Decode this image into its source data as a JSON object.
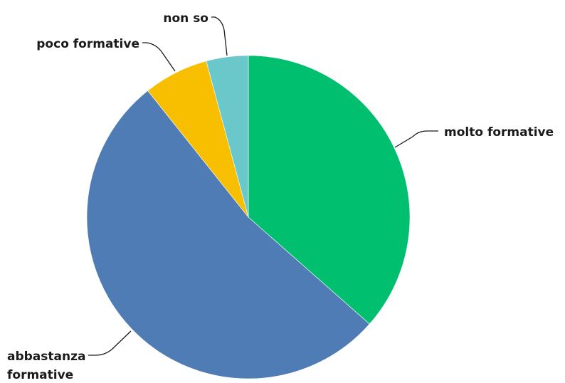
{
  "chart_data": {
    "type": "pie",
    "title": "",
    "slices": [
      {
        "name": "molto formative",
        "value": 36.5,
        "color": "#00c070"
      },
      {
        "name": "abbastanza formative",
        "value": 52.8,
        "color": "#4f7cb4"
      },
      {
        "name": "poco formative",
        "value": 6.5,
        "color": "#f8be00"
      },
      {
        "name": "non so",
        "value": 4.2,
        "color": "#6ac8cb"
      }
    ],
    "start": "12 o'clock",
    "direction": "clockwise",
    "legend": "none (labels beside slices)"
  }
}
